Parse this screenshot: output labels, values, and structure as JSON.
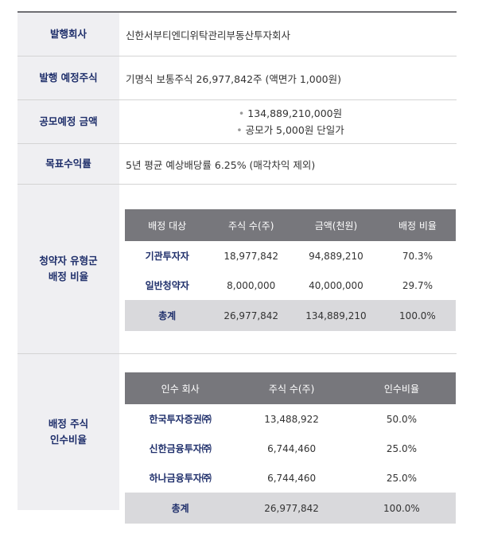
{
  "rows": {
    "issuer": {
      "label": "발행회사",
      "value": "신한서부티엔디위탁관리부동산투자회사"
    },
    "shares": {
      "label": "발행 예정주식",
      "value": "기명식 보통주식 26,977,842주 (액면가 1,000원)"
    },
    "offering": {
      "label": "공모예정 금액",
      "bullet1": "134,889,210,000원",
      "bullet2": "공모가 5,000원 단일가"
    },
    "target_yield": {
      "label": "목표수익률",
      "value": "5년 평균 예상배당률 6.25% (매각차익 제외)"
    },
    "allocation": {
      "label_line1": "청약자 유형군",
      "label_line2": "배정 비율"
    },
    "underwriting": {
      "label_line1": "배정 주식",
      "label_line2": "인수비율"
    }
  },
  "allocation_table": {
    "headers": [
      "배정 대상",
      "주식 수(주)",
      "금액(천원)",
      "배정 비율"
    ],
    "rows": [
      [
        "기관투자자",
        "18,977,842",
        "94,889,210",
        "70.3%"
      ],
      [
        "일반청약자",
        "8,000,000",
        "40,000,000",
        "29.7%"
      ]
    ],
    "total": [
      "총계",
      "26,977,842",
      "134,889,210",
      "100.0%"
    ]
  },
  "underwriting_table": {
    "headers": [
      "인수 회사",
      "주식 수(주)",
      "인수비율"
    ],
    "rows": [
      [
        "한국투자증권㈜",
        "13,488,922",
        "50.0%"
      ],
      [
        "신한금융투자㈜",
        "6,744,460",
        "25.0%"
      ],
      [
        "하나금융투자㈜",
        "6,744,460",
        "25.0%"
      ]
    ],
    "total": [
      "총계",
      "26,977,842",
      "100.0%"
    ]
  }
}
